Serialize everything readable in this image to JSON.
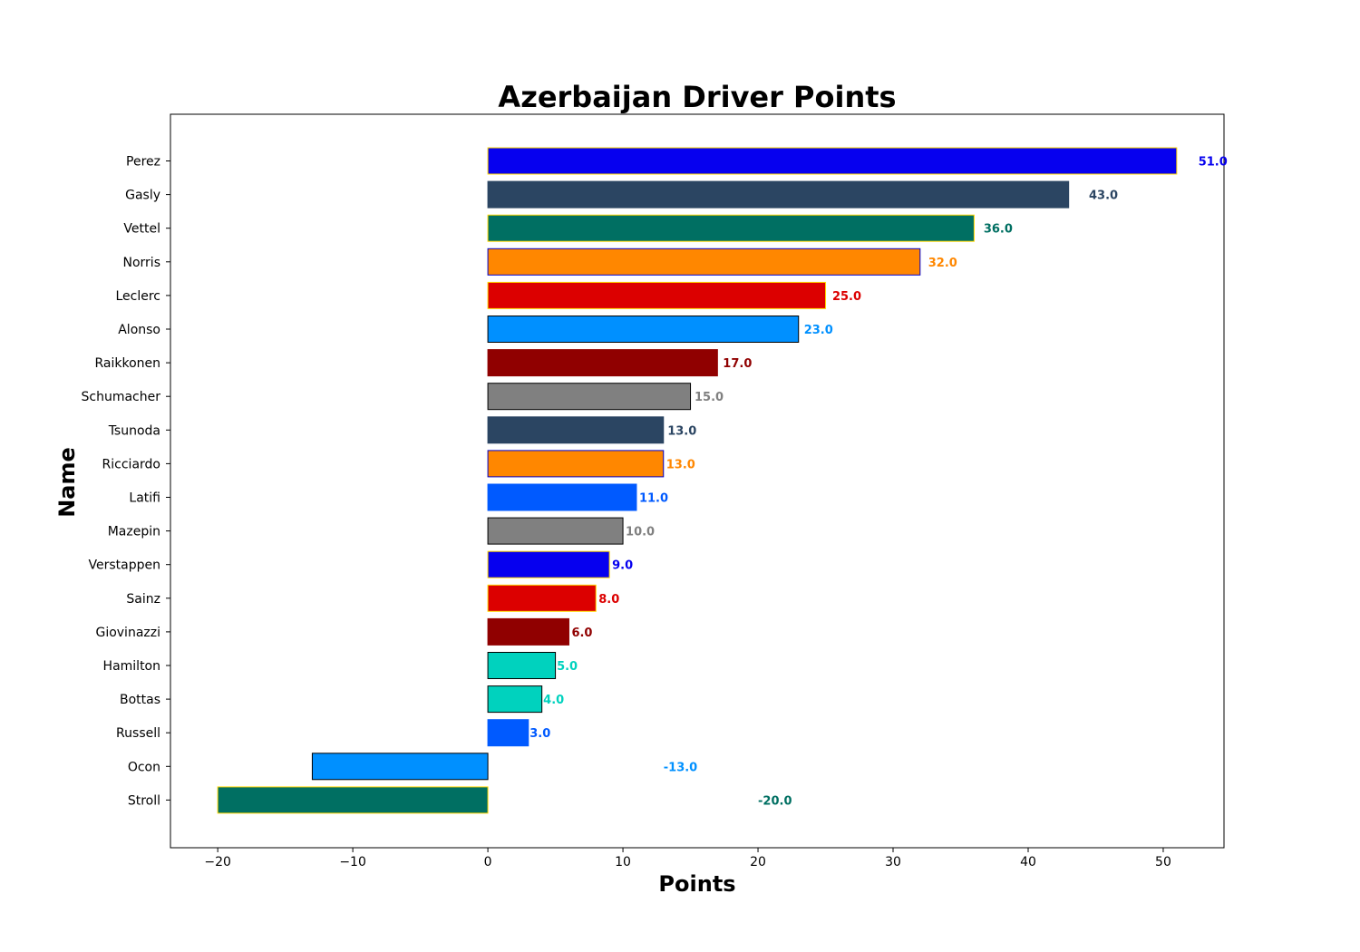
{
  "chart_data": {
    "type": "bar",
    "orientation": "horizontal",
    "title": "Azerbaijan Driver Points",
    "xlabel": "Points",
    "ylabel": "Name",
    "xlim": [
      -23.5,
      54.5
    ],
    "xticks": [
      -20,
      -10,
      0,
      10,
      20,
      30,
      40,
      50
    ],
    "xtick_labels": [
      "−20",
      "−10",
      "0",
      "10",
      "20",
      "30",
      "40",
      "50"
    ],
    "grid": false,
    "legend": "none",
    "bars": [
      {
        "name": "Perez",
        "value": 51.0,
        "label": "51.0",
        "color": "#0600EF",
        "edge": "#FFD700",
        "label_x": 52.6
      },
      {
        "name": "Gasly",
        "value": 43.0,
        "label": "43.0",
        "color": "#2B4562",
        "edge": "#2B4562",
        "label_x": 44.5
      },
      {
        "name": "Vettel",
        "value": 36.0,
        "label": "36.0",
        "color": "#006F62",
        "edge": "#FFD700",
        "label_x": 36.7
      },
      {
        "name": "Norris",
        "value": 32.0,
        "label": "32.0",
        "color": "#FF8700",
        "edge": "#0000CD",
        "label_x": 32.6
      },
      {
        "name": "Leclerc",
        "value": 25.0,
        "label": "25.0",
        "color": "#DC0000",
        "edge": "#FFD700",
        "label_x": 25.5
      },
      {
        "name": "Alonso",
        "value": 23.0,
        "label": "23.0",
        "color": "#0090FF",
        "edge": "#000000",
        "label_x": 23.4
      },
      {
        "name": "Raikkonen",
        "value": 17.0,
        "label": "17.0",
        "color": "#900000",
        "edge": "#900000",
        "label_x": 17.4
      },
      {
        "name": "Schumacher",
        "value": 15.0,
        "label": "15.0",
        "color": "#808080",
        "edge": "#000000",
        "label_x": 15.3
      },
      {
        "name": "Tsunoda",
        "value": 13.0,
        "label": "13.0",
        "color": "#2B4562",
        "edge": "#2B4562",
        "label_x": 13.3
      },
      {
        "name": "Ricciardo",
        "value": 13.0,
        "label": "13.0",
        "color": "#FF8700",
        "edge": "#0000CD",
        "label_x": 13.2
      },
      {
        "name": "Latifi",
        "value": 11.0,
        "label": "11.0",
        "color": "#005AFF",
        "edge": "#005AFF",
        "label_x": 11.2
      },
      {
        "name": "Mazepin",
        "value": 10.0,
        "label": "10.0",
        "color": "#808080",
        "edge": "#000000",
        "label_x": 10.2
      },
      {
        "name": "Verstappen",
        "value": 9.0,
        "label": "9.0",
        "color": "#0600EF",
        "edge": "#FFD700",
        "label_x": 9.2
      },
      {
        "name": "Sainz",
        "value": 8.0,
        "label": "8.0",
        "color": "#DC0000",
        "edge": "#FFD700",
        "label_x": 8.2
      },
      {
        "name": "Giovinazzi",
        "value": 6.0,
        "label": "6.0",
        "color": "#900000",
        "edge": "#900000",
        "label_x": 6.2
      },
      {
        "name": "Hamilton",
        "value": 5.0,
        "label": "5.0",
        "color": "#00D2BE",
        "edge": "#000000",
        "label_x": 5.1
      },
      {
        "name": "Bottas",
        "value": 4.0,
        "label": "4.0",
        "color": "#00D2BE",
        "edge": "#000000",
        "label_x": 4.1
      },
      {
        "name": "Russell",
        "value": 3.0,
        "label": "3.0",
        "color": "#005AFF",
        "edge": "#005AFF",
        "label_x": 3.1
      },
      {
        "name": "Ocon",
        "value": -13.0,
        "label": "-13.0",
        "color": "#0090FF",
        "edge": "#000000",
        "label_x": 13.0
      },
      {
        "name": "Stroll",
        "value": -20.0,
        "label": "-20.0",
        "color": "#006F62",
        "edge": "#FFD700",
        "label_x": 20.0
      }
    ]
  }
}
